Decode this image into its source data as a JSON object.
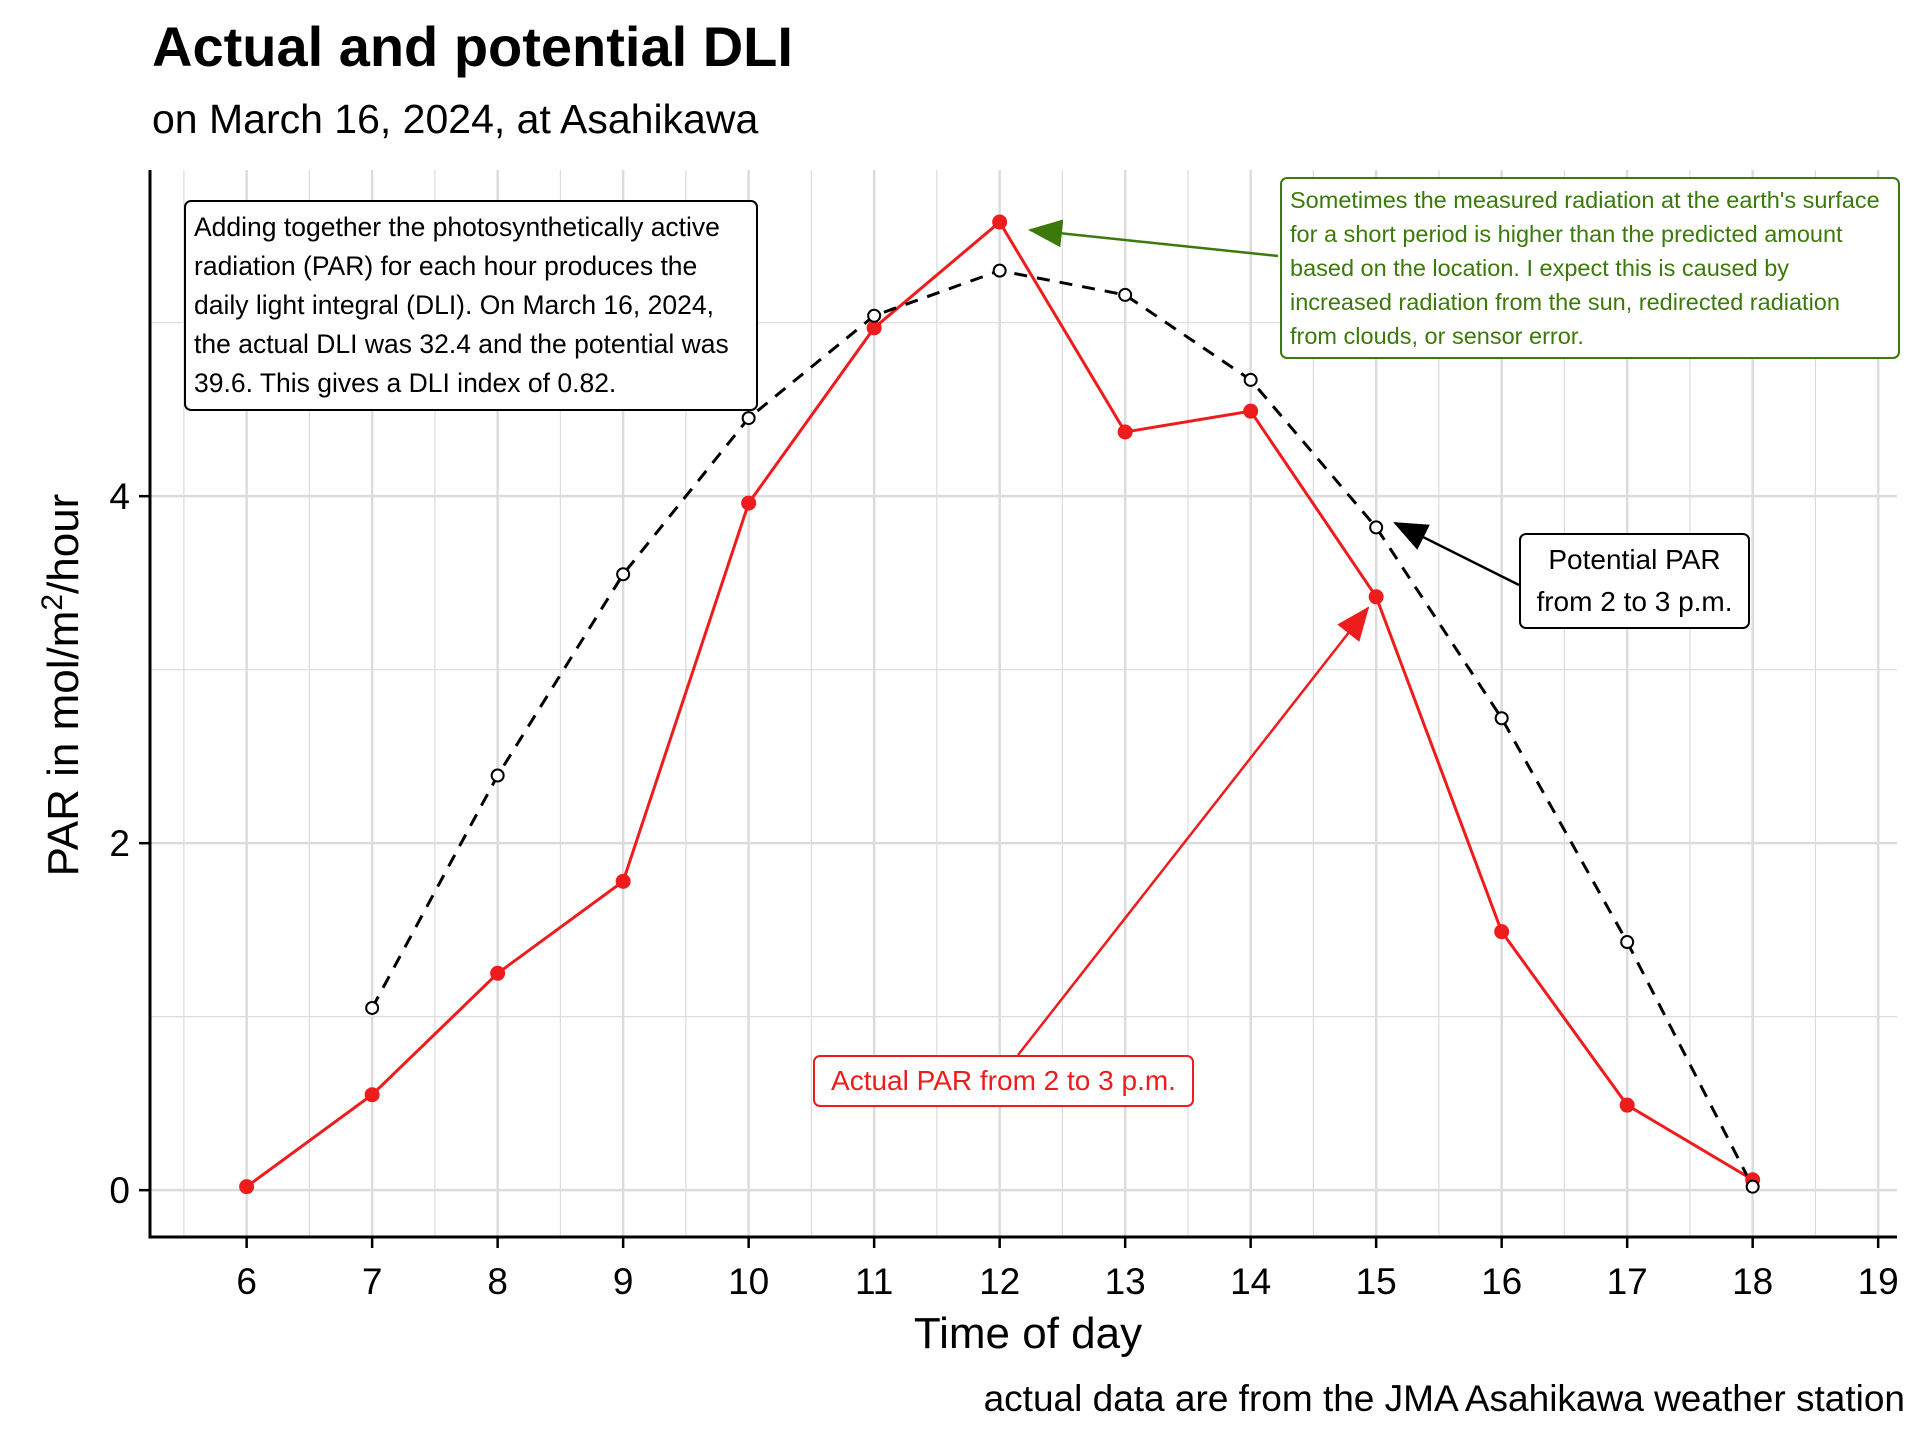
{
  "title": "Actual and potential DLI",
  "subtitle": "on March 16, 2024, at Asahikawa",
  "caption": "actual data are from the JMA Asahikawa weather station",
  "annotations": {
    "dli_note": "Adding together the photosynthetically active radiation (PAR) for each hour produces the daily light integral (DLI). On March 16, 2024, the actual DLI was 32.4 and the potential was 39.6. This gives a DLI index of 0.82.",
    "green_note": "Sometimes the measured radiation at the earth's surface for a short period is higher than the predicted amount based on the location. I expect this is caused by increased radiation from the sun, redirected radiation from clouds, or sensor error.",
    "potential_note": "Potential PAR from 2 to 3 p.m.",
    "actual_note": "Actual PAR from 2 to 3 p.m."
  },
  "colors": {
    "actual": "#ee1c1c",
    "potential": "#000000",
    "green_note": "#3b7a0a",
    "grid": "#dcdcdc"
  },
  "chart_data": {
    "type": "line",
    "xlabel": "Time of day",
    "ylabel_text": "PAR in mol/m",
    "ylabel_sup": "2",
    "ylabel_tail": "/hour",
    "x_ticks": [
      6,
      7,
      8,
      9,
      10,
      11,
      12,
      13,
      14,
      15,
      16,
      17,
      18,
      19
    ],
    "y_ticks": [
      0,
      2,
      4
    ],
    "xlim": [
      5.23,
      19.15
    ],
    "ylim": [
      -0.27,
      5.88
    ],
    "grid": true,
    "series": [
      {
        "key": "actual",
        "style": "solid",
        "marker": "filled-circle",
        "x": [
          6,
          7,
          8,
          9,
          10,
          11,
          12,
          13,
          14,
          15,
          16,
          17,
          18
        ],
        "y": [
          0.02,
          0.55,
          1.25,
          1.78,
          3.96,
          4.97,
          5.58,
          4.37,
          4.49,
          3.42,
          1.49,
          0.49,
          0.06
        ]
      },
      {
        "key": "potential",
        "style": "dashed",
        "marker": "open-circle",
        "x": [
          7,
          8,
          9,
          10,
          11,
          12,
          13,
          14,
          15,
          16,
          17,
          18
        ],
        "y": [
          1.05,
          2.39,
          3.55,
          4.45,
          5.04,
          5.3,
          5.16,
          4.67,
          3.82,
          2.72,
          1.43,
          0.02
        ]
      }
    ]
  }
}
